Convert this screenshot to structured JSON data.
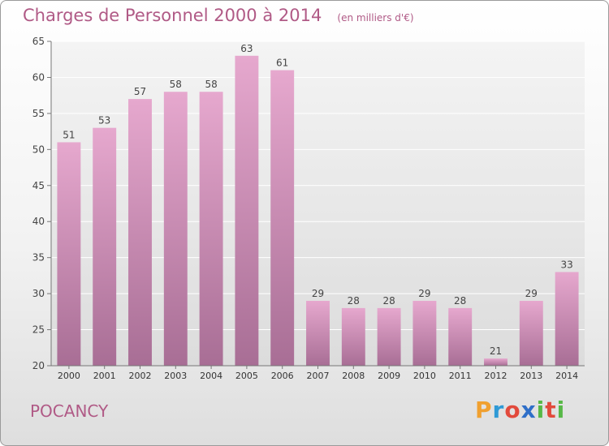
{
  "header": {
    "title": "Charges de Personnel 2000 à 2014",
    "subtitle": "(en milliers d'€)"
  },
  "footer": {
    "place": "POCANCY",
    "logo": {
      "letters": [
        "P",
        "r",
        "o",
        "x",
        "i",
        "t",
        "i"
      ],
      "colors": [
        "#f0a030",
        "#2f9ad6",
        "#e24a3c",
        "#2f6fc8",
        "#57b847",
        "#e24a3c",
        "#57b847"
      ]
    }
  },
  "chart_data": {
    "type": "bar",
    "title": "Charges de Personnel 2000 à 2014",
    "xlabel": "",
    "ylabel": "",
    "categories": [
      "2000",
      "2001",
      "2002",
      "2003",
      "2004",
      "2005",
      "2006",
      "2007",
      "2008",
      "2009",
      "2010",
      "2011",
      "2012",
      "2013",
      "2014"
    ],
    "values": [
      51,
      53,
      57,
      58,
      58,
      63,
      61,
      29,
      28,
      28,
      29,
      28,
      21,
      29,
      33
    ],
    "ylim": [
      20,
      65
    ],
    "yticks": [
      20,
      25,
      30,
      35,
      40,
      45,
      50,
      55,
      60,
      65
    ],
    "grid": true,
    "bar_color_top": "#e6a8ce",
    "bar_color_bottom": "#a86e95",
    "label_color": "#444444"
  }
}
